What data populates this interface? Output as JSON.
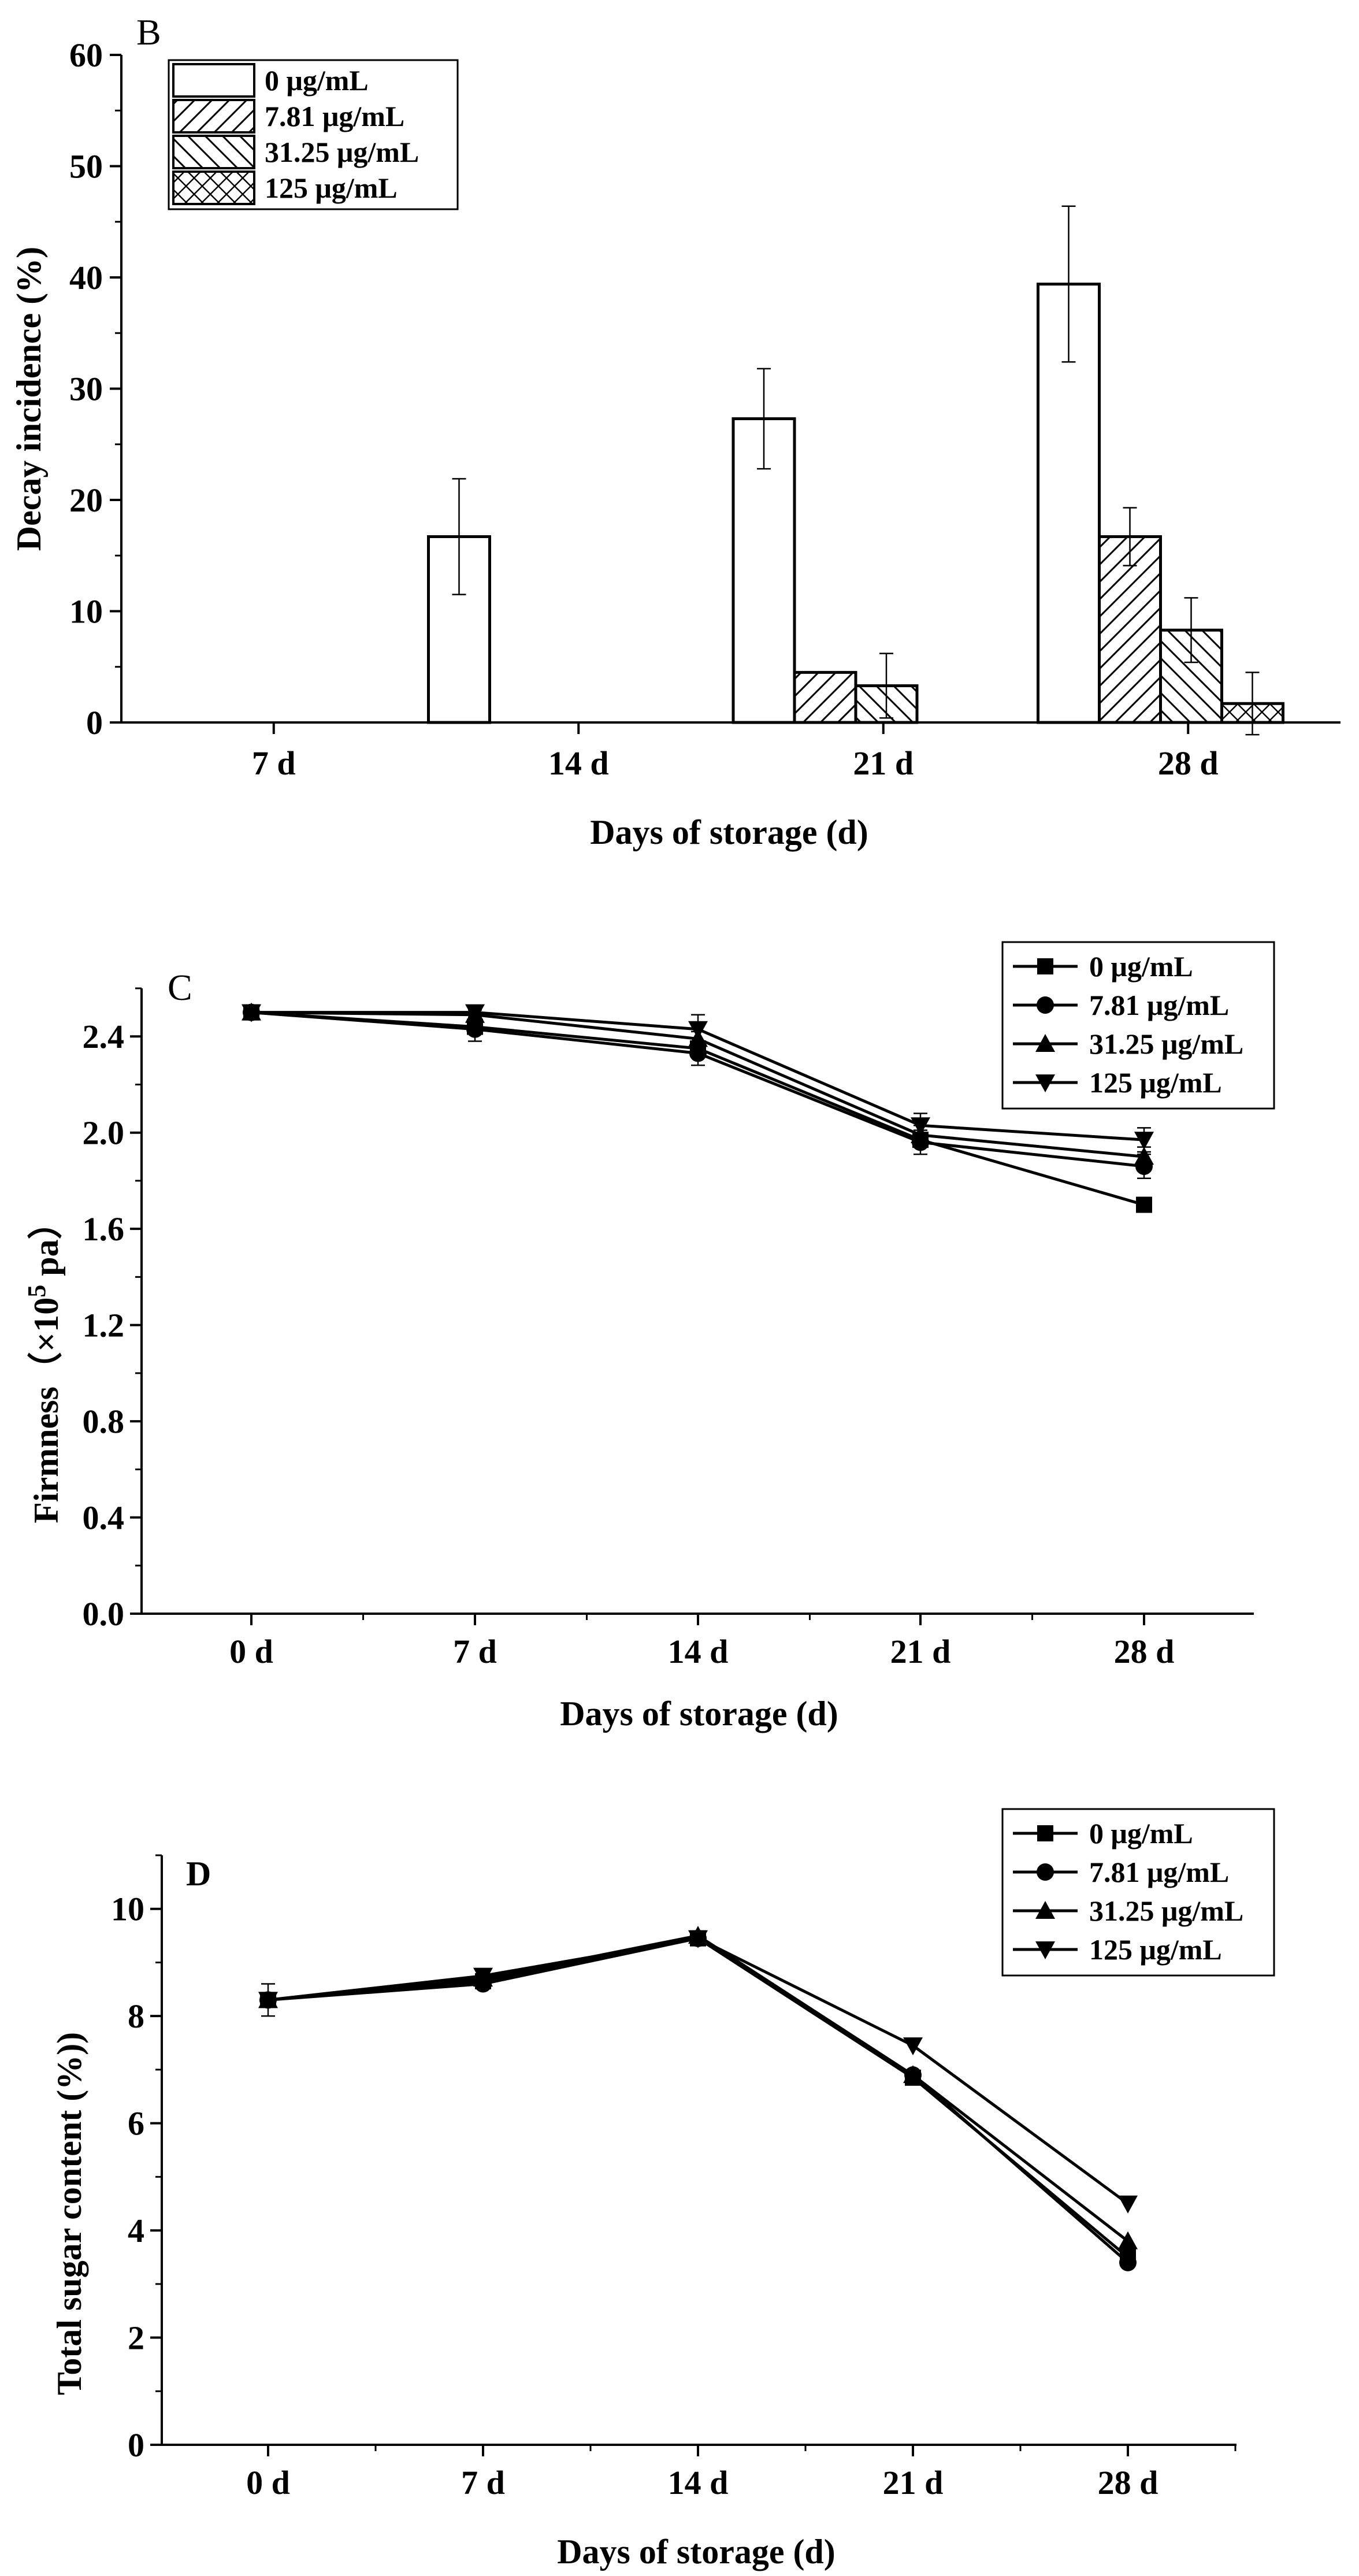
{
  "chart_data": [
    {
      "panel": "B",
      "type": "bar",
      "ylabel": "Decay incidence (%)",
      "xlabel": "Days of storage  (d)",
      "ylim": [
        0,
        60
      ],
      "yticks": [
        "0",
        "10",
        "20",
        "30",
        "40",
        "50",
        "60"
      ],
      "categories": [
        "7 d",
        "14 d",
        "21 d",
        "28 d"
      ],
      "legend_position": "top-left",
      "series": [
        {
          "name": "0 μg/mL",
          "pattern": "none",
          "values": [
            0,
            16.7,
            27.3,
            39.4
          ],
          "errors": [
            0,
            5.2,
            4.5,
            7.0
          ]
        },
        {
          "name": "7.81 μg/mL",
          "pattern": "diagonal",
          "values": [
            0,
            0,
            4.5,
            16.7
          ],
          "errors": [
            0,
            0,
            0,
            2.6
          ]
        },
        {
          "name": "31.25 μg/mL",
          "pattern": "backdiagonal",
          "values": [
            0,
            0,
            3.3,
            8.3
          ],
          "errors": [
            0,
            0,
            2.9,
            2.9
          ]
        },
        {
          "name": "125 μg/mL",
          "pattern": "crosshatch",
          "values": [
            0,
            0,
            0,
            1.7
          ],
          "errors": [
            0,
            0,
            0,
            2.8
          ]
        }
      ]
    },
    {
      "panel": "C",
      "type": "line",
      "ylabel": "Firmness（×10",
      "ylabel_sup": "5",
      "ylabel_end": " pa）",
      "xlabel": "Days of storage (d)",
      "ylim": [
        0.0,
        2.6
      ],
      "yticks": [
        "0.0",
        "0.4",
        "0.8",
        "1.2",
        "1.6",
        "2.0",
        "2.4"
      ],
      "categories": [
        "0 d",
        "7 d",
        "14 d",
        "21 d",
        "28 d"
      ],
      "legend_position": "top-right",
      "series": [
        {
          "name": "0 μg/mL",
          "marker": "square",
          "values": [
            2.5,
            2.44,
            2.35,
            1.97,
            1.7
          ],
          "errors": [
            0,
            0,
            0,
            0,
            0
          ]
        },
        {
          "name": "7.81 μg/mL",
          "marker": "circle",
          "values": [
            2.5,
            2.43,
            2.33,
            1.96,
            1.86
          ],
          "errors": [
            0.02,
            0.05,
            0.05,
            0.05,
            0.05
          ]
        },
        {
          "name": "31.25 μg/mL",
          "marker": "triangle-up",
          "values": [
            2.5,
            2.49,
            2.39,
            1.99,
            1.9
          ],
          "errors": [
            0,
            0.02,
            0.03,
            0.04,
            0.04
          ]
        },
        {
          "name": "125 μg/mL",
          "marker": "triangle-down",
          "values": [
            2.5,
            2.5,
            2.43,
            2.03,
            1.97
          ],
          "errors": [
            0,
            0.02,
            0.06,
            0.05,
            0.05
          ]
        }
      ]
    },
    {
      "panel": "D",
      "type": "line",
      "ylabel": "Total sugar content (%))",
      "xlabel": "Days of storage (d)",
      "ylim": [
        0,
        11
      ],
      "yticks": [
        "0",
        "2",
        "4",
        "6",
        "8",
        "10"
      ],
      "categories": [
        "0 d",
        "7 d",
        "14 d",
        "21 d",
        "28 d"
      ],
      "legend_position": "top-right",
      "series": [
        {
          "name": "0 μg/mL",
          "marker": "square",
          "values": [
            8.3,
            8.65,
            9.45,
            6.85,
            3.5
          ],
          "errors": [
            0,
            0,
            0,
            0,
            0
          ]
        },
        {
          "name": "7.81 μg/mL",
          "marker": "circle",
          "values": [
            8.3,
            8.6,
            9.45,
            6.9,
            3.4
          ],
          "errors": [
            0.3,
            0,
            0.05,
            0.05,
            0.05
          ]
        },
        {
          "name": "31.25 μg/mL",
          "marker": "triangle-up",
          "values": [
            8.3,
            8.7,
            9.5,
            6.9,
            3.8
          ],
          "errors": [
            0,
            0,
            0,
            0,
            0
          ]
        },
        {
          "name": "125 μg/mL",
          "marker": "triangle-down",
          "values": [
            8.3,
            8.75,
            9.45,
            7.45,
            4.5
          ],
          "errors": [
            0,
            0,
            0,
            0,
            0
          ]
        }
      ]
    }
  ]
}
